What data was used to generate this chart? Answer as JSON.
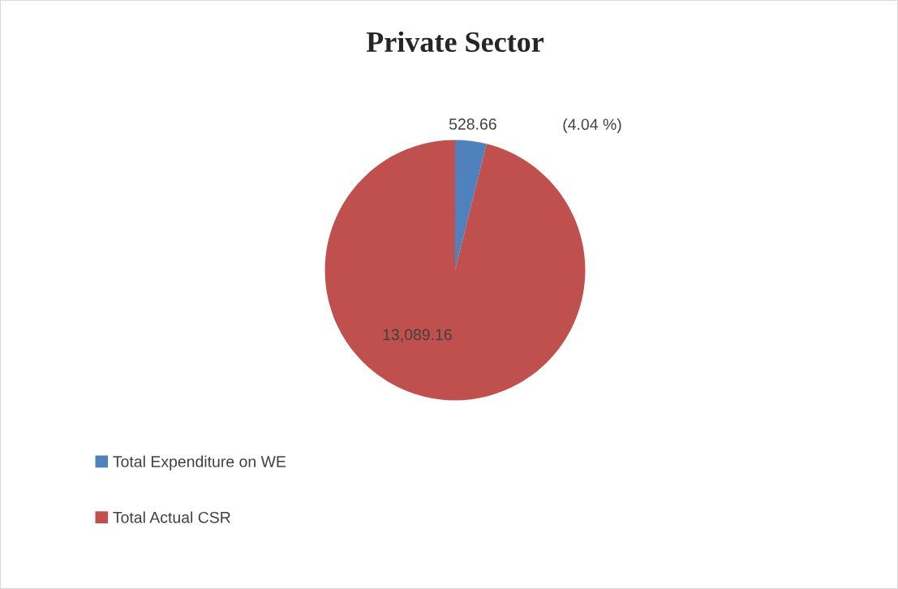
{
  "chart_data": {
    "type": "pie",
    "title": "Private Sector",
    "categories": [
      "Total Expenditure on WE",
      "Total Actual CSR"
    ],
    "values": [
      528.66,
      13089.16
    ],
    "colors": [
      "#4f81bd",
      "#c0504d"
    ],
    "value_labels": [
      "528.66",
      "13,089.16"
    ],
    "annotations": [
      "(4.04 %)"
    ],
    "legend": "bottom left"
  }
}
